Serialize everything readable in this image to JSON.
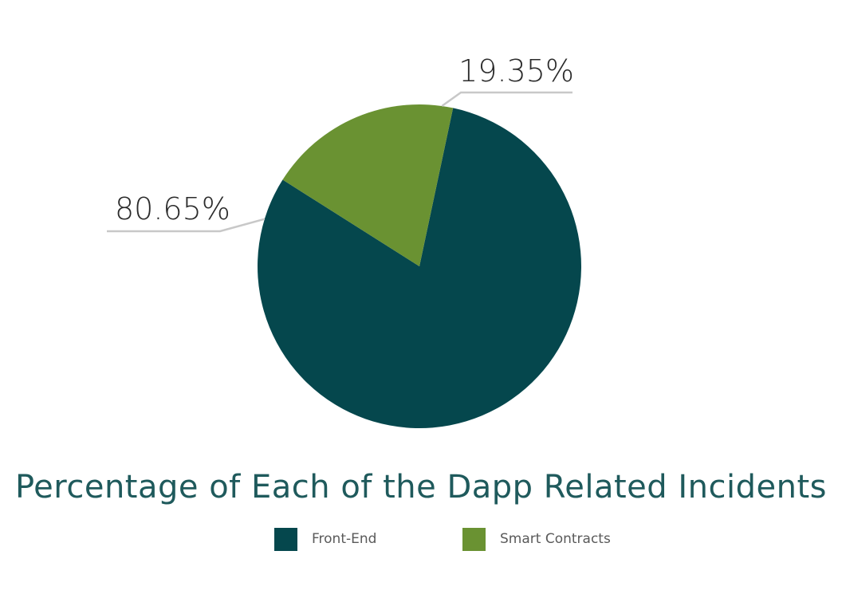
{
  "chart_data": {
    "type": "pie",
    "title": "Percentage of Each of the Dapp Related Incidents",
    "categories": [
      "Front-End",
      "Smart Contracts"
    ],
    "values": [
      80.65,
      19.35
    ],
    "labels": [
      "80.65%",
      "19.35%"
    ],
    "colors": [
      "#05474d",
      "#6a9232"
    ],
    "legend_position": "bottom"
  }
}
